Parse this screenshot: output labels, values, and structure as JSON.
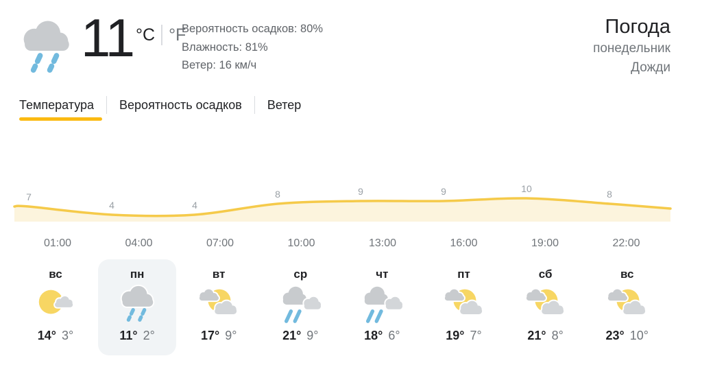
{
  "current": {
    "icon": "rain",
    "temperature": "11",
    "unit_celsius": "°C",
    "unit_fahrenheit": "°F",
    "precipitation": "Вероятность осадков: 80%",
    "humidity": "Влажность: 81%",
    "wind": "Ветер: 16 км/ч"
  },
  "header": {
    "title": "Погода",
    "subtitle_day": "понедельник",
    "subtitle_condition": "Дожди"
  },
  "tabs": [
    {
      "label": "Температура",
      "active": true
    },
    {
      "label": "Вероятность осадков",
      "active": false
    },
    {
      "label": "Ветер",
      "active": false
    }
  ],
  "chart_data": {
    "type": "area",
    "x": [
      "01:00",
      "04:00",
      "07:00",
      "10:00",
      "13:00",
      "16:00",
      "19:00",
      "22:00"
    ],
    "values": [
      7,
      4,
      4,
      8,
      9,
      9,
      10,
      8
    ],
    "series_name": "Температура",
    "title": "",
    "xlabel": "",
    "ylabel": "",
    "grid": false,
    "legend": false,
    "line_color": "#f5ca4a",
    "fill_color": "#fcf4dd",
    "label_color": "#9aa0a6"
  },
  "forecast": [
    {
      "day": "вс",
      "icon": "mostly-sunny",
      "high": "14°",
      "low": "3°",
      "selected": false
    },
    {
      "day": "пн",
      "icon": "rain",
      "high": "11°",
      "low": "2°",
      "selected": true
    },
    {
      "day": "вт",
      "icon": "partly-cloudy",
      "high": "17°",
      "low": "9°",
      "selected": false
    },
    {
      "day": "ср",
      "icon": "rain-showers",
      "high": "21°",
      "low": "9°",
      "selected": false
    },
    {
      "day": "чт",
      "icon": "rain-showers",
      "high": "18°",
      "low": "6°",
      "selected": false
    },
    {
      "day": "пт",
      "icon": "partly-cloudy",
      "high": "19°",
      "low": "7°",
      "selected": false
    },
    {
      "day": "сб",
      "icon": "partly-cloudy",
      "high": "21°",
      "low": "8°",
      "selected": false
    },
    {
      "day": "вс",
      "icon": "partly-cloudy",
      "high": "23°",
      "low": "10°",
      "selected": false
    }
  ],
  "colors": {
    "accent_yellow": "#fbba12",
    "sun": "#f7d663",
    "cloud": "#c8cbce",
    "cloud_light": "#d3d6d9",
    "rain": "#72bade",
    "text_dark": "#202124",
    "text_gray": "#70757a"
  }
}
